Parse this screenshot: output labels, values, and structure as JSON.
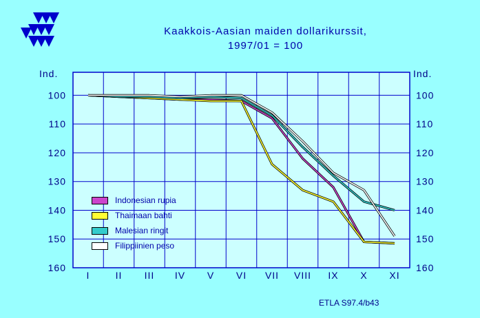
{
  "chart_data": {
    "type": "line",
    "title": "Kaakkois-Aasian  maiden  dollarikurssit,",
    "subtitle": "1997/01  =  100",
    "ylabel_left": "Ind.",
    "ylabel_right": "Ind.",
    "ylim": [
      160,
      92
    ],
    "yticks": [
      100,
      110,
      120,
      130,
      140,
      150,
      160
    ],
    "categories": [
      "I",
      "II",
      "III",
      "IV",
      "V",
      "VI",
      "VII",
      "VIII",
      "IX",
      "X",
      "XI"
    ],
    "grid": true,
    "legend_position": "lower-left",
    "series": [
      {
        "name": "Indonesian rupia",
        "color": "#cc44cc",
        "values": [
          100,
          100.5,
          101,
          101.5,
          101.5,
          102,
          108,
          122,
          132,
          151,
          151.5
        ]
      },
      {
        "name": "Thaimaan bahti",
        "color": "#ffff33",
        "values": [
          100,
          100.5,
          101,
          101.5,
          102,
          102,
          124,
          133,
          137,
          151,
          151.5
        ]
      },
      {
        "name": "Malesian ringit",
        "color": "#33cccc",
        "values": [
          100,
          100.5,
          100.5,
          101,
          100.5,
          101,
          107,
          118,
          128,
          137,
          140
        ]
      },
      {
        "name": "Filippiinien peso",
        "color": "#ffffff",
        "values": [
          100,
          100,
          100,
          100.5,
          100,
          100,
          106,
          116,
          127,
          133,
          149
        ]
      }
    ]
  },
  "footer": "ETLA S97.4/b43",
  "logo": "etla-triangles-logo"
}
